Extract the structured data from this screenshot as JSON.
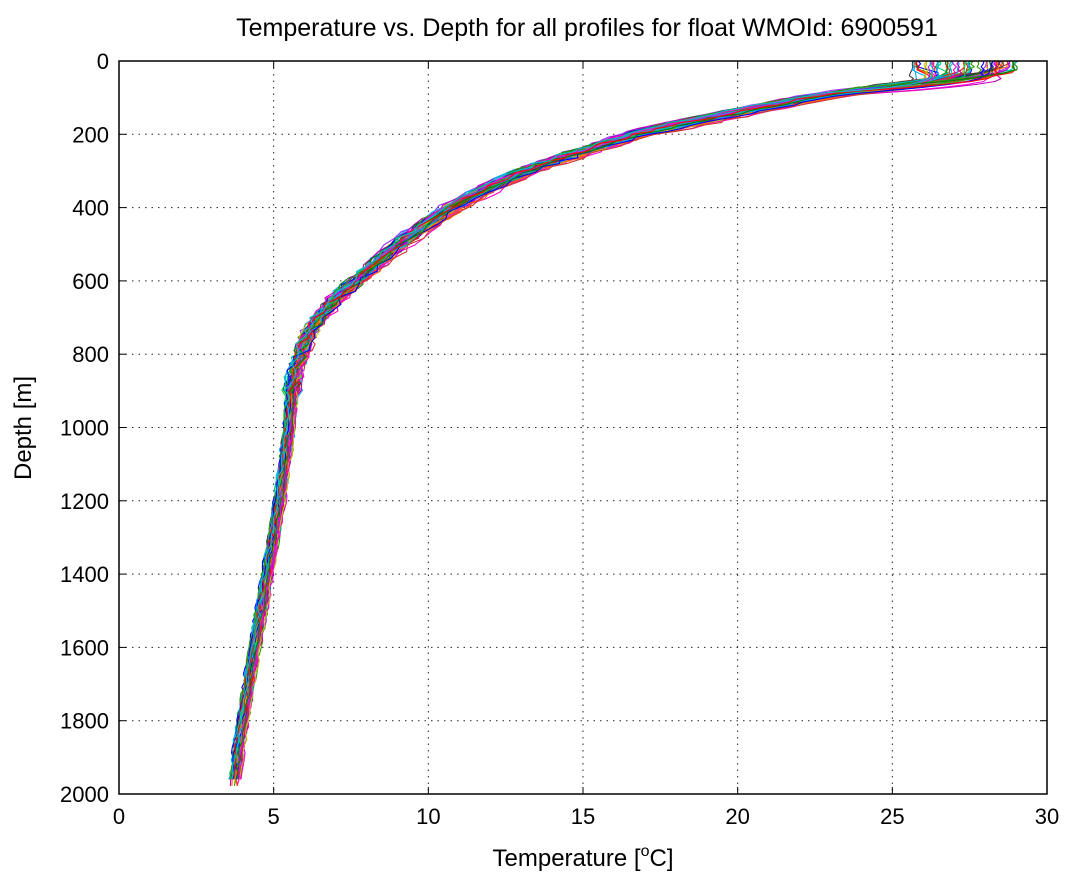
{
  "chart_data": {
    "type": "line",
    "title": "Temperature vs. Depth for all profiles for float WMOId: 6900591",
    "xlabel": {
      "prefix": "Temperature [",
      "superscript": "o",
      "suffix": "C]"
    },
    "ylabel": "Depth [m]",
    "xlim": [
      0,
      30
    ],
    "ylim": [
      0,
      2000
    ],
    "y_reversed": true,
    "grid": true,
    "legend": "none",
    "x_ticks": [
      "0",
      "5",
      "10",
      "15",
      "20",
      "25",
      "30"
    ],
    "y_ticks": [
      "0",
      "200",
      "400",
      "600",
      "800",
      "1000",
      "1200",
      "1400",
      "1600",
      "1800",
      "2000"
    ],
    "series_colors": [
      "#0000ff",
      "#008000",
      "#ff0000",
      "#00bfbf",
      "#bf00bf",
      "#bfbf00",
      "#404040",
      "#ff6600",
      "#00cc66",
      "#9933ff",
      "#00aaff",
      "#cc3333",
      "#339900",
      "#ff00cc"
    ],
    "reference_profile": {
      "depth": [
        0,
        30,
        60,
        100,
        150,
        200,
        250,
        300,
        350,
        400,
        450,
        500,
        550,
        600,
        650,
        700,
        750,
        800,
        850,
        900,
        1000,
        1100,
        1200,
        1300,
        1400,
        1500,
        1600,
        1700,
        1800,
        1900,
        1980
      ],
      "temperature": [
        27.3,
        27.2,
        25.5,
        22.5,
        19.5,
        16.8,
        14.9,
        13.2,
        11.9,
        10.8,
        9.9,
        9.1,
        8.4,
        7.7,
        7.0,
        6.5,
        6.1,
        5.9,
        5.7,
        5.6,
        5.5,
        5.35,
        5.2,
        5.0,
        4.8,
        4.6,
        4.4,
        4.2,
        4.0,
        3.85,
        3.75
      ]
    },
    "profile_count": 60,
    "surface_temperature_range": [
      25.6,
      29.0
    ]
  }
}
